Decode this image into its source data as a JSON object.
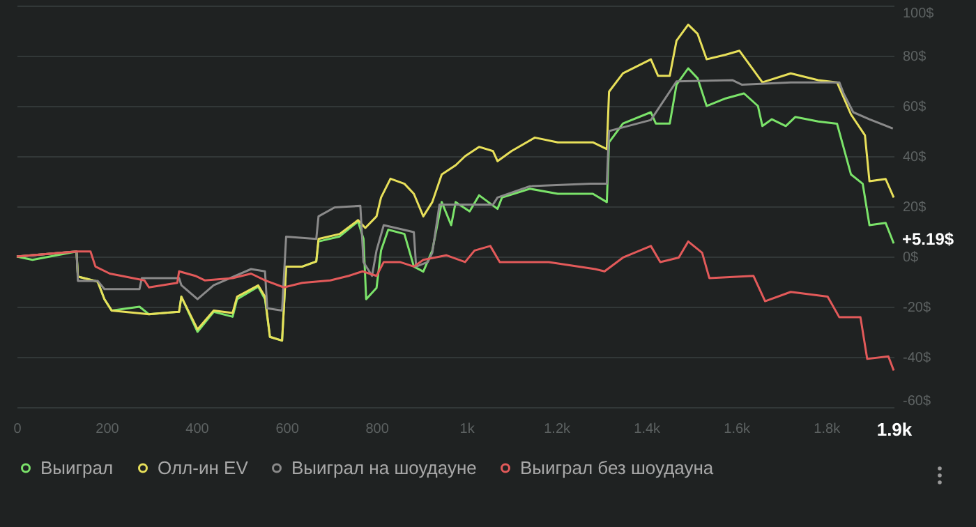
{
  "chart_data": {
    "type": "line",
    "xlim": [
      0,
      1950
    ],
    "ylim": [
      -60,
      100
    ],
    "xticks": [
      0,
      200,
      400,
      600,
      800,
      {
        "value": 1000,
        "label": "1k"
      },
      {
        "value": 1200,
        "label": "1.2k"
      },
      {
        "value": 1400,
        "label": "1.4k"
      },
      {
        "value": 1600,
        "label": "1.6k"
      },
      {
        "value": 1800,
        "label": "1.8k"
      },
      {
        "value": 1950,
        "label": "1.9k"
      }
    ],
    "yticks": [
      {
        "value": -60,
        "label": "-60$"
      },
      {
        "value": -40,
        "label": "-40$"
      },
      {
        "value": -20,
        "label": "-20$"
      },
      {
        "value": 0,
        "label": "0$"
      },
      {
        "value": 20,
        "label": "20$"
      },
      {
        "value": 40,
        "label": "40$"
      },
      {
        "value": 60,
        "label": "60$"
      },
      {
        "value": 80,
        "label": "80$"
      },
      {
        "value": 100,
        "label": "100$"
      }
    ],
    "grid": "y",
    "legend": "bottom left",
    "line_style": "solid",
    "marker": "none",
    "annotations": [
      {
        "text": "+5.19$",
        "x": 1950,
        "y": 5.19
      }
    ],
    "series": [
      {
        "name": "Выиграл",
        "color": "#7be36a",
        "x": [
          0,
          35,
          133,
          136,
          180,
          195,
          211,
          273,
          294,
          361,
          366,
          402,
          438,
          480,
          490,
          537,
          552,
          563,
          590,
          599,
          635,
          666,
          671,
          718,
          759,
          771,
          777,
          800,
          810,
          826,
          862,
          883,
          904,
          924,
          935,
          945,
          966,
          976,
          1007,
          1028,
          1069,
          1079,
          1141,
          1203,
          1281,
          1312,
          1317,
          1348,
          1410,
          1421,
          1452,
          1467,
          1493,
          1514,
          1534,
          1576,
          1617,
          1648,
          1658,
          1679,
          1710,
          1731,
          1782,
          1824,
          1855,
          1881,
          1896,
          1932,
          1950
        ],
        "values": [
          0,
          -1.3,
          2,
          -8,
          -10,
          -17,
          -21.5,
          -20,
          -23,
          -22,
          -16,
          -30,
          -22,
          -24,
          -17,
          -12,
          -17,
          -32,
          -33.5,
          -4,
          -4,
          -2,
          6,
          8,
          14,
          7,
          -17,
          -12.5,
          2.4,
          10.7,
          9,
          -4,
          -6,
          2.4,
          12.5,
          21.7,
          12.5,
          21.7,
          18,
          24.4,
          19,
          23.5,
          27,
          25,
          25,
          21.7,
          45.5,
          53,
          57.5,
          53,
          53,
          68.5,
          75,
          71,
          60,
          63,
          65,
          60,
          52,
          54.7,
          52,
          55.6,
          53.8,
          52.9,
          32.7,
          29,
          12.5,
          13.4,
          5.19
        ]
      },
      {
        "name": "Олл-ин EV",
        "color": "#e8e05a",
        "x": [
          0,
          133,
          136,
          180,
          195,
          211,
          294,
          361,
          366,
          402,
          438,
          480,
          490,
          537,
          552,
          563,
          590,
          599,
          635,
          666,
          671,
          718,
          759,
          775,
          800,
          810,
          831,
          862,
          883,
          904,
          924,
          945,
          976,
          997,
          1028,
          1059,
          1069,
          1100,
          1152,
          1203,
          1281,
          1312,
          1317,
          1348,
          1410,
          1426,
          1452,
          1467,
          1493,
          1514,
          1534,
          1576,
          1607,
          1658,
          1721,
          1782,
          1824,
          1855,
          1886,
          1896,
          1932,
          1950
        ],
        "values": [
          0,
          2,
          -8,
          -10,
          -17,
          -21.5,
          -23,
          -22,
          -16,
          -29,
          -21.5,
          -22.5,
          -16,
          -11.5,
          -16,
          -32,
          -33.5,
          -4,
          -4,
          -2,
          7,
          9,
          14.5,
          11.4,
          16,
          23.5,
          31,
          29,
          25,
          16,
          21.7,
          32.7,
          36.4,
          40,
          43.7,
          42,
          38,
          42,
          47.4,
          45.5,
          45.5,
          42.8,
          65.7,
          73,
          78.6,
          72,
          72,
          86,
          92.4,
          88.7,
          78.6,
          80.4,
          82,
          69.4,
          73,
          70.3,
          69.4,
          56.6,
          48.3,
          30,
          30.9,
          23.5
        ]
      },
      {
        "name": "Выиграл на шоудауне",
        "color": "#8a8a8a",
        "x": [
          0,
          133,
          136,
          180,
          195,
          273,
          278,
          361,
          366,
          402,
          438,
          521,
          552,
          557,
          590,
          599,
          666,
          671,
          707,
          764,
          771,
          790,
          800,
          816,
          883,
          888,
          914,
          924,
          940,
          1059,
          1069,
          1141,
          1276,
          1312,
          1317,
          1338,
          1410,
          1467,
          1591,
          1612,
          1721,
          1829,
          1839,
          1860,
          1896,
          1948
        ],
        "values": [
          0,
          2,
          -9.7,
          -9.7,
          -13,
          -13,
          -8.6,
          -8.6,
          -11.4,
          -17,
          -11.4,
          -5,
          -5.9,
          -20.6,
          -21.5,
          7.9,
          7,
          16,
          19.6,
          20.2,
          -2.2,
          -7.7,
          2.4,
          12.5,
          9.7,
          -4,
          -2.2,
          1.5,
          20.7,
          20.7,
          23.5,
          28,
          29,
          29,
          50,
          51,
          54.4,
          69.8,
          70.3,
          68.5,
          69.4,
          69.4,
          64.8,
          57.5,
          54.7,
          51
        ]
      },
      {
        "name": "Выиграл без шоудауна",
        "color": "#e35a5a",
        "x": [
          0,
          133,
          164,
          175,
          207,
          233,
          284,
          294,
          357,
          361,
          397,
          418,
          480,
          521,
          552,
          594,
          635,
          697,
          738,
          769,
          800,
          816,
          852,
          883,
          904,
          955,
          997,
          1018,
          1053,
          1074,
          1183,
          1286,
          1307,
          1348,
          1410,
          1431,
          1472,
          1493,
          1524,
          1540,
          1638,
          1664,
          1721,
          1803,
          1829,
          1876,
          1891,
          1938,
          1950
        ],
        "values": [
          0,
          2,
          2,
          -4,
          -6.8,
          -7.7,
          -9.5,
          -12.3,
          -10.5,
          -5.9,
          -7.7,
          -9.5,
          -8.6,
          -6.8,
          -9.5,
          -12.3,
          -10.5,
          -9.5,
          -7.7,
          -5.9,
          -7.7,
          -2.2,
          -2.2,
          -4,
          -1.3,
          0.5,
          -2.2,
          2.4,
          4.2,
          -2.2,
          -2.2,
          -5,
          -5.9,
          -0.4,
          4.2,
          -2.2,
          -0.4,
          6,
          1.5,
          -8.6,
          -7.7,
          -17.8,
          -14.1,
          -16,
          -24.2,
          -24.2,
          -40.8,
          -39.8,
          -45.4
        ]
      }
    ]
  }
}
